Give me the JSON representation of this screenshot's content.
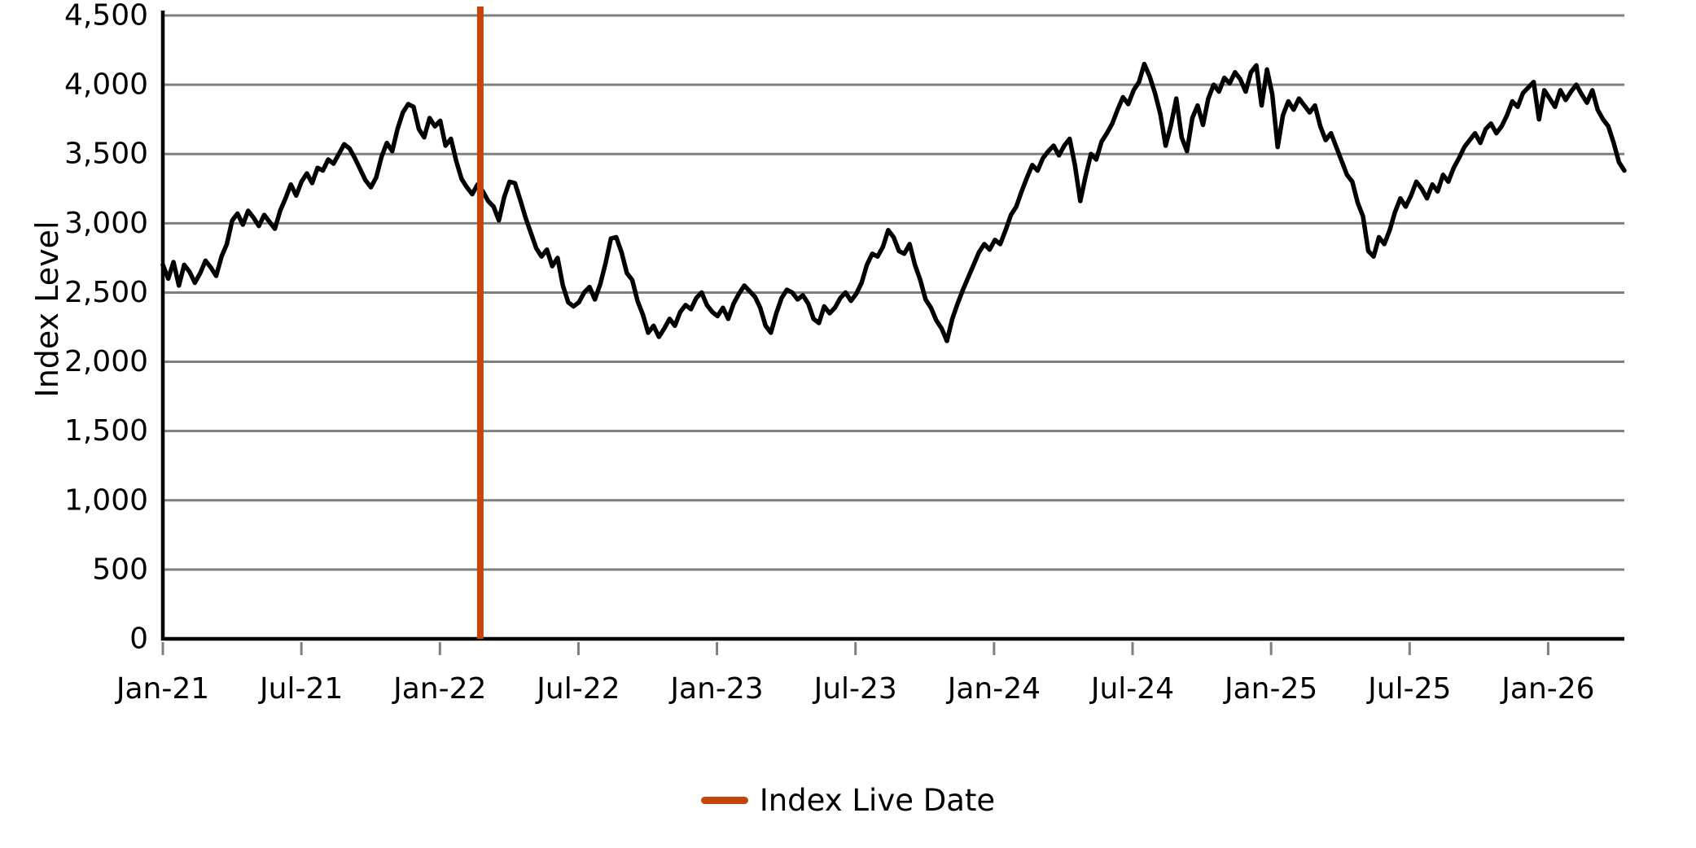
{
  "chart_data": {
    "type": "line",
    "title": "",
    "xlabel": "",
    "ylabel": "Index Level",
    "ylim": [
      0,
      4500
    ],
    "yticks": [
      0,
      500,
      1000,
      1500,
      2000,
      2500,
      3000,
      3500,
      4000,
      4500
    ],
    "grid": {
      "show": true,
      "color": "#7F7F7F"
    },
    "background": "#FFFFFF",
    "axis_color": "#000000",
    "x_axis": {
      "unit": "weekly samples, months since Jan-2021",
      "months_span": 63.3,
      "tick_positions_months": [
        0,
        6,
        12,
        18,
        24,
        30,
        36,
        42,
        48,
        54,
        60
      ],
      "tick_labels": [
        "Jan-21",
        "Jul-21",
        "Jan-22",
        "Jul-22",
        "Jan-23",
        "Jul-23",
        "Jan-24",
        "Jul-24",
        "Jan-25",
        "Jul-25",
        "Jan-26"
      ]
    },
    "series": [
      {
        "name": "Index Level",
        "color": "#000000",
        "values": [
          2700,
          2600,
          2720,
          2550,
          2700,
          2650,
          2570,
          2640,
          2730,
          2680,
          2620,
          2760,
          2850,
          3020,
          3070,
          2990,
          3090,
          3040,
          2980,
          3060,
          3010,
          2960,
          3090,
          3180,
          3280,
          3200,
          3300,
          3360,
          3290,
          3400,
          3380,
          3460,
          3430,
          3500,
          3570,
          3540,
          3470,
          3390,
          3310,
          3260,
          3330,
          3480,
          3580,
          3520,
          3680,
          3800,
          3860,
          3840,
          3680,
          3620,
          3760,
          3700,
          3740,
          3560,
          3610,
          3450,
          3320,
          3260,
          3210,
          3280,
          3230,
          3160,
          3120,
          3020,
          3190,
          3300,
          3290,
          3170,
          3040,
          2930,
          2820,
          2760,
          2810,
          2690,
          2750,
          2550,
          2430,
          2400,
          2430,
          2500,
          2540,
          2450,
          2560,
          2710,
          2890,
          2900,
          2790,
          2640,
          2590,
          2440,
          2340,
          2210,
          2260,
          2180,
          2240,
          2310,
          2260,
          2360,
          2410,
          2380,
          2460,
          2500,
          2410,
          2360,
          2330,
          2390,
          2310,
          2420,
          2490,
          2550,
          2510,
          2470,
          2390,
          2260,
          2210,
          2350,
          2460,
          2520,
          2500,
          2450,
          2480,
          2420,
          2310,
          2280,
          2400,
          2350,
          2390,
          2460,
          2500,
          2440,
          2490,
          2570,
          2700,
          2780,
          2760,
          2830,
          2950,
          2900,
          2800,
          2780,
          2850,
          2700,
          2590,
          2450,
          2390,
          2300,
          2240,
          2150,
          2310,
          2420,
          2520,
          2610,
          2700,
          2790,
          2850,
          2810,
          2880,
          2850,
          2950,
          3060,
          3120,
          3230,
          3330,
          3420,
          3380,
          3470,
          3520,
          3560,
          3490,
          3560,
          3610,
          3420,
          3160,
          3340,
          3500,
          3460,
          3590,
          3650,
          3720,
          3820,
          3910,
          3860,
          3960,
          4020,
          4150,
          4060,
          3940,
          3790,
          3560,
          3710,
          3900,
          3620,
          3520,
          3760,
          3850,
          3710,
          3900,
          4000,
          3950,
          4050,
          4010,
          4090,
          4040,
          3950,
          4090,
          4140,
          3850,
          4110,
          3930,
          3550,
          3780,
          3880,
          3820,
          3900,
          3850,
          3800,
          3850,
          3700,
          3600,
          3650,
          3550,
          3450,
          3350,
          3300,
          3150,
          3050,
          2800,
          2760,
          2900,
          2850,
          2950,
          3080,
          3180,
          3120,
          3200,
          3300,
          3250,
          3180,
          3280,
          3230,
          3350,
          3300,
          3400,
          3470,
          3550,
          3600,
          3650,
          3580,
          3680,
          3720,
          3650,
          3700,
          3780,
          3880,
          3840,
          3940,
          3980,
          4020,
          3750,
          3960,
          3900,
          3840,
          3960,
          3890,
          3950,
          4000,
          3930,
          3870,
          3960,
          3820,
          3750,
          3700,
          3580,
          3440,
          3380
        ]
      }
    ],
    "markers": [
      {
        "type": "vline",
        "label": "Index Live Date",
        "position_months": 13.75,
        "approx_date": "Feb-22",
        "color": "#C6450B"
      }
    ],
    "legend": {
      "position": "bottom-center",
      "entries": [
        {
          "label": "Index Live Date",
          "color": "#C6450B",
          "swatch": "line"
        }
      ]
    }
  }
}
